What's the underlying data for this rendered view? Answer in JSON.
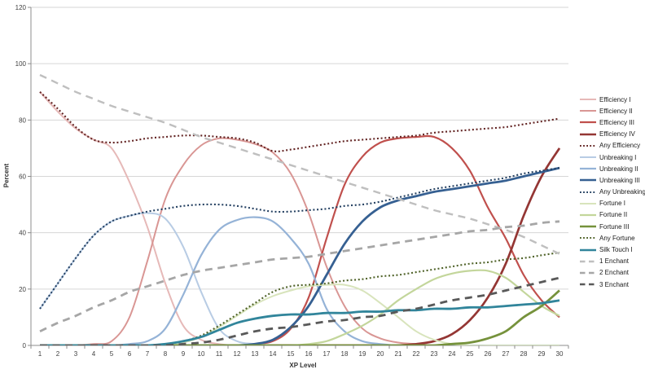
{
  "chart_data": {
    "type": "line",
    "title": "",
    "xlabel": "XP Level",
    "ylabel": "Percent",
    "ylim": [
      0,
      120
    ],
    "y_ticks": [
      0,
      20,
      40,
      60,
      80,
      100,
      120
    ],
    "x": [
      1,
      2,
      3,
      4,
      5,
      6,
      7,
      8,
      9,
      10,
      11,
      12,
      13,
      14,
      15,
      16,
      17,
      18,
      19,
      20,
      21,
      22,
      23,
      24,
      25,
      26,
      27,
      28,
      29,
      30
    ],
    "grid": "horizontal",
    "legend_position": "right",
    "style": {
      "background": "#FFFFFF",
      "grid_color": "#D6D6D6",
      "axis_color": "#8C8C8C",
      "tick_label_color": "#3F3F3F"
    },
    "series": [
      {
        "name": "Efficiency I",
        "color": "#E6B9B8",
        "line_style": "solid",
        "width": 2,
        "values": [
          90,
          83,
          77,
          73,
          70,
          58,
          42,
          22,
          7,
          2,
          0.5,
          0,
          0,
          0,
          0,
          0,
          0,
          0,
          0,
          0,
          0,
          0,
          0,
          0,
          0,
          0,
          0,
          0,
          0,
          0
        ]
      },
      {
        "name": "Efficiency II",
        "color": "#D99694",
        "line_style": "solid",
        "width": 2,
        "values": [
          0,
          0,
          0,
          0.5,
          1.5,
          10,
          30,
          52,
          64,
          71,
          73.5,
          73,
          71.5,
          68.5,
          61,
          47,
          28,
          14,
          6,
          2.5,
          1,
          0.5,
          0,
          0,
          0,
          0,
          0,
          0,
          0,
          0
        ]
      },
      {
        "name": "Efficiency III",
        "color": "#C0504D",
        "line_style": "solid",
        "width": 2.2,
        "values": [
          0,
          0,
          0,
          0,
          0,
          0,
          0,
          0,
          0,
          0,
          0,
          0,
          0.5,
          1.5,
          6,
          17,
          38,
          57,
          67,
          72,
          73.5,
          74,
          74,
          70,
          62,
          49,
          38,
          25,
          16,
          10
        ]
      },
      {
        "name": "Efficiency IV",
        "color": "#943634",
        "line_style": "solid",
        "width": 2.7,
        "values": [
          0,
          0,
          0,
          0,
          0,
          0,
          0,
          0,
          0,
          0,
          0,
          0,
          0,
          0,
          0,
          0,
          0,
          0,
          0,
          0,
          0,
          0.5,
          1.5,
          4,
          9,
          17,
          29,
          46,
          60,
          70
        ]
      },
      {
        "name": "Any Efficiency",
        "color": "#632423",
        "line_style": "dotted",
        "width": 2.1,
        "values": [
          90,
          84,
          77.5,
          73,
          72,
          72.5,
          73.5,
          74,
          74.5,
          74.5,
          74,
          73.5,
          72,
          69,
          69.5,
          70.5,
          71.5,
          72.5,
          73,
          73.5,
          74,
          74.5,
          75.5,
          76,
          76.5,
          77,
          77.5,
          78.5,
          79.5,
          80.5
        ]
      },
      {
        "name": "Unbreaking I",
        "color": "#B8CCE4",
        "line_style": "solid",
        "width": 2,
        "values": [
          13,
          22,
          31,
          39,
          44,
          46,
          47,
          45,
          35,
          19,
          6,
          1.5,
          0.5,
          0,
          0,
          0,
          0,
          0,
          0,
          0,
          0,
          0,
          0,
          0,
          0,
          0,
          0,
          0,
          0,
          0
        ]
      },
      {
        "name": "Unbreaking II",
        "color": "#95B3D7",
        "line_style": "solid",
        "width": 2.2,
        "values": [
          0,
          0,
          0,
          0,
          0,
          0.5,
          1.5,
          6,
          18,
          32,
          41,
          44.5,
          45.5,
          44,
          38,
          29,
          13,
          5,
          1.5,
          0.5,
          0,
          0,
          0,
          0,
          0,
          0,
          0,
          0,
          0,
          0
        ]
      },
      {
        "name": "Unbreaking III",
        "color": "#366092",
        "line_style": "solid",
        "width": 2.8,
        "values": [
          0,
          0,
          0,
          0,
          0,
          0,
          0,
          0,
          0,
          0,
          0,
          0,
          0.5,
          2,
          6.5,
          14,
          25,
          36,
          44,
          49,
          51.5,
          53,
          54.5,
          55.5,
          56.5,
          57.5,
          58.5,
          60,
          61.5,
          63
        ]
      },
      {
        "name": "Any Unbreaking",
        "color": "#244061",
        "line_style": "dotted",
        "width": 2.1,
        "values": [
          13,
          22,
          31,
          39,
          44,
          46,
          47.5,
          48.5,
          49.5,
          50,
          50,
          49.5,
          48.5,
          47.5,
          47.5,
          48,
          48.5,
          49.5,
          50,
          51,
          52.5,
          54,
          55.5,
          56.5,
          57.5,
          58.5,
          59.5,
          61,
          62,
          63
        ]
      },
      {
        "name": "Fortune I",
        "color": "#D8E4BC",
        "line_style": "solid",
        "width": 2,
        "values": [
          0,
          0,
          0,
          0,
          0,
          0,
          0,
          0.5,
          1,
          3,
          6.5,
          10.5,
          14.5,
          17.5,
          19.5,
          21,
          21.5,
          21.5,
          19.5,
          15,
          10,
          5,
          2,
          0.5,
          0,
          0,
          0,
          0,
          0,
          0
        ]
      },
      {
        "name": "Fortune II",
        "color": "#C3D69B",
        "line_style": "solid",
        "width": 2.2,
        "values": [
          0,
          0,
          0,
          0,
          0,
          0,
          0,
          0,
          0,
          0,
          0,
          0,
          0,
          0,
          0,
          0.5,
          1.5,
          4,
          7,
          11,
          16,
          20,
          23.5,
          25.5,
          26.5,
          26.5,
          24,
          19,
          14,
          10.5
        ]
      },
      {
        "name": "Fortune III",
        "color": "#76923C",
        "line_style": "solid",
        "width": 2.8,
        "values": [
          0,
          0,
          0,
          0,
          0,
          0,
          0,
          0,
          0,
          0,
          0,
          0,
          0,
          0,
          0,
          0,
          0,
          0,
          0,
          0,
          0,
          0,
          0,
          0.5,
          1,
          2.5,
          5,
          10,
          14,
          19.5
        ]
      },
      {
        "name": "Any Fortune",
        "color": "#4F6228",
        "line_style": "dotted",
        "width": 2.1,
        "values": [
          0,
          0,
          0,
          0,
          0,
          0,
          0,
          0.5,
          1.5,
          3.5,
          7,
          11,
          15,
          19,
          21,
          21.5,
          22,
          23,
          23.5,
          24.5,
          25,
          26,
          27,
          28,
          29,
          29.5,
          30.5,
          31,
          32,
          33
        ]
      },
      {
        "name": "Silk Touch I",
        "color": "#31859B",
        "line_style": "solid",
        "width": 2.8,
        "values": [
          0,
          0,
          0,
          0,
          0,
          0,
          0,
          0.5,
          1.5,
          3,
          5.5,
          8,
          9.5,
          10.5,
          11,
          11,
          11.5,
          11.5,
          12,
          12,
          12.5,
          12.5,
          13,
          13,
          13.5,
          13.5,
          14,
          14.5,
          15,
          16
        ]
      },
      {
        "name": "1 Enchant",
        "color": "#BFBFBF",
        "line_style": "dashed",
        "width": 2.4,
        "values": [
          96,
          93,
          90,
          87.5,
          85,
          83,
          81,
          79,
          76.5,
          74,
          72,
          70,
          68,
          66,
          64,
          62,
          60,
          58,
          56,
          54,
          52,
          50,
          48,
          46.5,
          45,
          43,
          41,
          38.5,
          35.5,
          32.5
        ]
      },
      {
        "name": "2 Enchant",
        "color": "#A6A6A6",
        "line_style": "dashed",
        "width": 2.8,
        "values": [
          5,
          8,
          10.5,
          13.5,
          16,
          19,
          21,
          23,
          25,
          26.5,
          27.5,
          28.5,
          29.5,
          30.5,
          31,
          31.5,
          32.5,
          33.5,
          34.5,
          35.5,
          36.5,
          37.5,
          38.5,
          39.5,
          40.5,
          41,
          42,
          42.5,
          43.5,
          44
        ]
      },
      {
        "name": "3 Enchant",
        "color": "#595959",
        "line_style": "dashed",
        "width": 2.8,
        "values": [
          0,
          0,
          0,
          0,
          0,
          0,
          0,
          0,
          0.5,
          1,
          2,
          3.5,
          5,
          6,
          6.5,
          7.5,
          8.5,
          9,
          10,
          10.5,
          12,
          13,
          14.5,
          16,
          17,
          18,
          19.5,
          21,
          22.5,
          24
        ]
      }
    ]
  }
}
